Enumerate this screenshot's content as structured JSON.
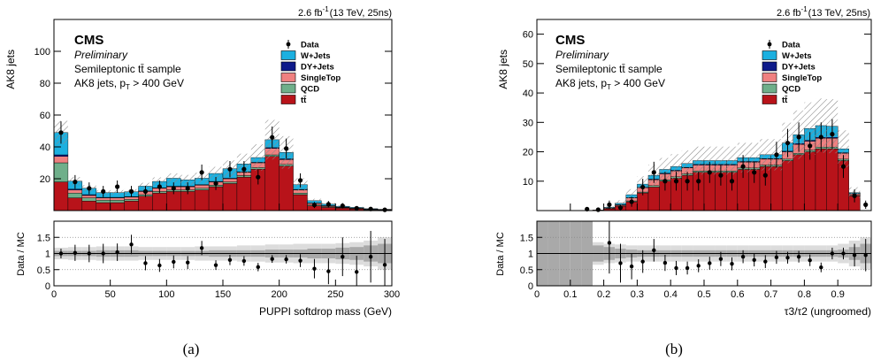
{
  "chart_data": [
    {
      "type": "bar",
      "stacked": true,
      "panel_caption": "(a)",
      "lumi_label": "2.6 fb",
      "lumi_superscript": "-1",
      "energy_label": "(13 TeV, 25ns)",
      "cms_label": "CMS",
      "preliminary_label": "Preliminary",
      "sample_label": "Semileptonic tt̄ sample",
      "cut_label": "AK8 jets, p",
      "cut_subscript": "T",
      "cut_suffix": " > 400 GeV",
      "xlabel": "PUPPI softdrop mass (GeV)",
      "ylabel": "AK8 jets",
      "ratio_ylabel": "Data / MC",
      "xlim": [
        0,
        300
      ],
      "ylim": [
        0,
        120
      ],
      "ratio_ylim": [
        0,
        2
      ],
      "x_ticks": [
        0,
        50,
        100,
        150,
        200,
        250,
        300
      ],
      "y_ticks": [
        20,
        40,
        60,
        80,
        100
      ],
      "ratio_ticks": [
        0,
        0.5,
        1,
        1.5
      ],
      "ratio_tick_labels": [
        "0",
        "0.5",
        "1",
        "1.5"
      ],
      "bin_edges": [
        0,
        12.5,
        25,
        37.5,
        50,
        62.5,
        75,
        87.5,
        100,
        112.5,
        125,
        137.5,
        150,
        162.5,
        175,
        187.5,
        200,
        212.5,
        225,
        237.5,
        250,
        262.5,
        275,
        287.5,
        300
      ],
      "series": [
        {
          "name": "tt̄",
          "color": "#b8131a",
          "values": [
            18,
            8,
            6,
            5,
            5,
            6,
            9,
            11,
            12,
            12,
            13,
            15,
            17,
            21,
            26,
            34,
            28,
            10,
            3,
            2,
            1.5,
            1,
            0.5,
            0.3
          ]
        },
        {
          "name": "QCD",
          "color": "#6faf8a",
          "values": [
            12,
            3,
            2,
            1.5,
            1.5,
            1,
            1,
            1,
            1,
            1,
            1,
            1,
            1,
            1,
            1,
            1,
            1,
            1,
            0.5,
            0.5,
            0.3,
            0.2,
            0.1,
            0.1
          ]
        },
        {
          "name": "SingleTop",
          "color": "#ef8080",
          "values": [
            4,
            2,
            1.5,
            1.5,
            1.5,
            1.5,
            2,
            2,
            2,
            2,
            2,
            2,
            2,
            2,
            3,
            4,
            3,
            2,
            1,
            0.5,
            0.3,
            0.3,
            0.2,
            0.1
          ]
        },
        {
          "name": "DY+Jets",
          "color": "#0e1a8a",
          "values": [
            1,
            0.5,
            0.5,
            0.3,
            0.3,
            0.3,
            0.3,
            0.3,
            0.3,
            0.3,
            0.3,
            0.3,
            0.3,
            0.3,
            0.3,
            0.5,
            0.5,
            0.3,
            0.2,
            0.1,
            0.1,
            0.1,
            0.1,
            0.1
          ]
        },
        {
          "name": "W+Jets",
          "color": "#1cb0e0",
          "values": [
            14,
            5,
            4,
            3,
            3,
            3,
            3,
            4,
            5,
            4,
            4,
            5,
            6,
            5,
            3,
            5,
            4,
            3,
            1.5,
            1,
            0.5,
            0.4,
            0.3,
            0.2
          ]
        }
      ],
      "data_name": "Data",
      "data_values": [
        49,
        18,
        14,
        12,
        15,
        12,
        12,
        15,
        14,
        14,
        24,
        17,
        26,
        26,
        21,
        46,
        39,
        19,
        3.5,
        4,
        3,
        1.5,
        1,
        0.5
      ],
      "data_errors": [
        7,
        4.3,
        3.7,
        3.5,
        3.9,
        3.5,
        3.5,
        3.9,
        3.7,
        3.7,
        4.9,
        4.1,
        5.1,
        5.1,
        4.6,
        6.8,
        6.2,
        4.4,
        1.9,
        2,
        1.7,
        1.2,
        1,
        0.7
      ],
      "unc_frac": [
        0.15,
        0.14,
        0.14,
        0.14,
        0.14,
        0.14,
        0.14,
        0.14,
        0.15,
        0.16,
        0.17,
        0.18,
        0.2,
        0.22,
        0.25,
        0.28,
        0.28,
        0.25,
        0.2,
        0.2,
        0.2,
        0.2,
        0.2,
        0.2
      ],
      "ratio_values": [
        1.0,
        1.02,
        1.0,
        1.0,
        1.04,
        1.28,
        0.7,
        0.63,
        0.74,
        0.72,
        1.17,
        0.64,
        0.8,
        0.77,
        0.58,
        0.83,
        0.82,
        0.78,
        0.53,
        0.45,
        0.9,
        0.43,
        0.9,
        0.65
      ],
      "ratio_errors": [
        0.15,
        0.25,
        0.27,
        0.3,
        0.27,
        0.3,
        0.22,
        0.2,
        0.2,
        0.2,
        0.22,
        0.15,
        0.16,
        0.15,
        0.13,
        0.12,
        0.13,
        0.2,
        0.3,
        0.4,
        0.6,
        0.5,
        0.8,
        0.8
      ],
      "ratio_band_inner": [
        0.08,
        0.08,
        0.08,
        0.1,
        0.1,
        0.1,
        0.08,
        0.08,
        0.08,
        0.08,
        0.08,
        0.1,
        0.1,
        0.1,
        0.1,
        0.12,
        0.12,
        0.12,
        0.15,
        0.15,
        0.18,
        0.2,
        0.25,
        0.3
      ],
      "ratio_band_outer": [
        0.18,
        0.2,
        0.2,
        0.22,
        0.22,
        0.22,
        0.2,
        0.2,
        0.2,
        0.2,
        0.22,
        0.22,
        0.22,
        0.25,
        0.25,
        0.28,
        0.28,
        0.3,
        0.3,
        0.3,
        0.32,
        0.35,
        0.4,
        0.5
      ]
    },
    {
      "type": "bar",
      "stacked": true,
      "panel_caption": "(b)",
      "lumi_label": "2.6 fb",
      "lumi_superscript": "-1",
      "energy_label": "(13 TeV, 25ns)",
      "cms_label": "CMS",
      "preliminary_label": "Preliminary",
      "sample_label": "Semileptonic tt̄ sample",
      "cut_label": "AK8 jets, p",
      "cut_subscript": "T",
      "cut_suffix": " > 400 GeV",
      "xlabel": "τ3/τ2 (ungroomed)",
      "ylabel": "AK8 jets",
      "ratio_ylabel": "Data / MC",
      "xlim": [
        0,
        1
      ],
      "ylim": [
        0,
        65
      ],
      "ratio_ylim": [
        0,
        2
      ],
      "x_ticks": [
        0,
        0.1,
        0.2,
        0.3,
        0.4,
        0.5,
        0.6,
        0.7,
        0.8,
        0.9
      ],
      "y_ticks": [
        10,
        20,
        30,
        40,
        50,
        60
      ],
      "ratio_ticks": [
        0,
        0.5,
        1,
        1.5
      ],
      "ratio_tick_labels": [
        "0",
        "0.5",
        "1",
        "1.5"
      ],
      "bin_edges": [
        0,
        0.0333,
        0.0667,
        0.1,
        0.1333,
        0.1667,
        0.2,
        0.2333,
        0.2667,
        0.3,
        0.3333,
        0.3667,
        0.4,
        0.4333,
        0.4667,
        0.5,
        0.5333,
        0.5667,
        0.6,
        0.6333,
        0.6667,
        0.7,
        0.7333,
        0.7667,
        0.8,
        0.8333,
        0.8667,
        0.9,
        0.9333,
        0.9667,
        1.0
      ],
      "series": [
        {
          "name": "tt̄",
          "color": "#b8131a",
          "values": [
            0,
            0,
            0,
            0,
            0,
            0.2,
            0.6,
            1.5,
            3,
            6,
            8,
            10,
            11,
            12,
            13,
            13,
            13,
            13,
            14,
            14,
            15,
            15,
            17,
            19,
            20,
            21,
            21,
            17,
            5,
            0
          ]
        },
        {
          "name": "QCD",
          "color": "#6faf8a",
          "values": [
            0,
            0,
            0,
            0,
            0,
            0,
            0.1,
            0.1,
            0.3,
            0.3,
            0.5,
            0.5,
            0.5,
            0.5,
            0.5,
            0.5,
            0.5,
            0.5,
            0.5,
            0.5,
            0.5,
            0.5,
            0.5,
            0.5,
            0.6,
            0.6,
            0.6,
            0.5,
            0.2,
            0
          ]
        },
        {
          "name": "SingleTop",
          "color": "#ef8080",
          "values": [
            0,
            0,
            0,
            0,
            0,
            0,
            0.2,
            0.3,
            1,
            1.5,
            2,
            2,
            2,
            2,
            2,
            2,
            2,
            2,
            2,
            2,
            2,
            2,
            2.5,
            3,
            3,
            3,
            3,
            2,
            0.5,
            0
          ]
        },
        {
          "name": "DY+Jets",
          "color": "#0e1a8a",
          "values": [
            0,
            0,
            0,
            0,
            0,
            0,
            0,
            0.1,
            0.1,
            0.1,
            0.2,
            0.2,
            0.2,
            0.2,
            0.2,
            0.2,
            0.2,
            0.2,
            0.2,
            0.2,
            0.2,
            0.2,
            0.2,
            0.3,
            0.3,
            0.3,
            0.3,
            0.2,
            0.1,
            0
          ]
        },
        {
          "name": "W+Jets",
          "color": "#1cb0e0",
          "values": [
            0,
            0,
            0,
            0,
            0,
            0,
            0.2,
            0.5,
            1,
            1.1,
            1.3,
            1.3,
            1.3,
            1.3,
            1.3,
            1.3,
            1.3,
            1.3,
            1.3,
            1.3,
            1.3,
            1.3,
            2.8,
            3,
            4,
            4,
            3.8,
            1.3,
            0.3,
            0
          ]
        },
        {
          "name": "hatch",
          "color": "#999999",
          "values": []
        }
      ],
      "data_name": "Data",
      "data_values": [
        0,
        0,
        0,
        0,
        0.5,
        0.3,
        2,
        1,
        3,
        8,
        13,
        10,
        10,
        10,
        10,
        13,
        12,
        10,
        15,
        13,
        12,
        19,
        23,
        25,
        22,
        25,
        26,
        15,
        5,
        2
      ],
      "data_errors": [
        0,
        0,
        0,
        0,
        0.7,
        0.5,
        1.4,
        1,
        1.7,
        2.8,
        3.6,
        3.2,
        3.2,
        3.2,
        3.2,
        3.6,
        3.5,
        3.2,
        3.9,
        3.6,
        3.5,
        4.4,
        4.8,
        5,
        4.7,
        5,
        5.1,
        3.9,
        2.2,
        1.4
      ],
      "unc_frac": [
        0,
        0,
        0,
        0,
        0,
        0.3,
        0.4,
        0.4,
        0.35,
        0.3,
        0.3,
        0.28,
        0.28,
        0.28,
        0.28,
        0.28,
        0.28,
        0.28,
        0.28,
        0.28,
        0.28,
        0.28,
        0.3,
        0.32,
        0.32,
        0.32,
        0.32,
        0.3,
        0.3,
        0
      ],
      "ratio_values": [
        null,
        null,
        null,
        null,
        null,
        null,
        1.33,
        0.7,
        0.6,
        0.75,
        1.1,
        0.71,
        0.55,
        0.55,
        0.62,
        0.7,
        0.83,
        0.68,
        0.9,
        0.8,
        0.75,
        0.88,
        0.87,
        0.9,
        0.79,
        0.57,
        1.0,
        1.0,
        0.95,
        0.95
      ],
      "ratio_errors": [
        null,
        null,
        null,
        null,
        null,
        null,
        0.95,
        0.6,
        0.4,
        0.35,
        0.35,
        0.25,
        0.22,
        0.2,
        0.2,
        0.2,
        0.22,
        0.2,
        0.2,
        0.2,
        0.2,
        0.2,
        0.18,
        0.18,
        0.18,
        0.15,
        0.18,
        0.18,
        0.35,
        0.5
      ],
      "ratio_band_inner": [
        1.0,
        1.0,
        1.0,
        1.0,
        1.0,
        0.25,
        0.2,
        0.15,
        0.12,
        0.1,
        0.1,
        0.1,
        0.1,
        0.1,
        0.1,
        0.1,
        0.1,
        0.1,
        0.1,
        0.1,
        0.1,
        0.1,
        0.1,
        0.1,
        0.1,
        0.1,
        0.1,
        0.12,
        0.2,
        0.3
      ],
      "ratio_band_outer": [
        1.0,
        1.0,
        1.0,
        1.0,
        1.0,
        0.35,
        0.3,
        0.28,
        0.25,
        0.25,
        0.25,
        0.25,
        0.25,
        0.25,
        0.25,
        0.25,
        0.25,
        0.25,
        0.25,
        0.25,
        0.25,
        0.25,
        0.25,
        0.25,
        0.25,
        0.25,
        0.25,
        0.3,
        0.4,
        0.5
      ]
    }
  ]
}
